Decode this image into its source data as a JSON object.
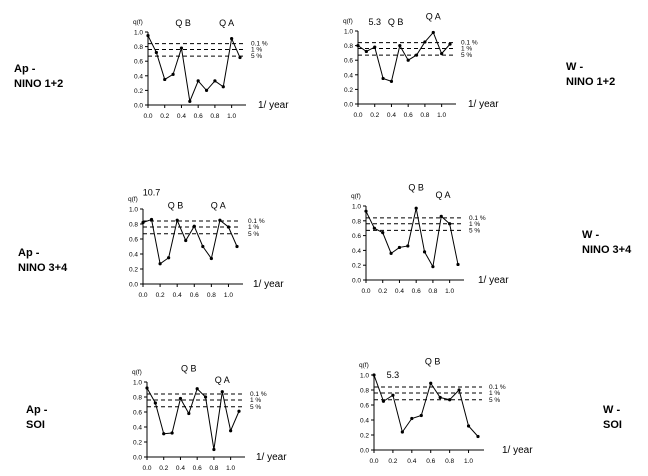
{
  "side_labels": [
    {
      "line1": "Ap -",
      "line2": "NINO 1+2"
    },
    {
      "line1": "W -",
      "line2": "NINO 1+2"
    },
    {
      "line1": "Ap -",
      "line2": "NINO 3+4"
    },
    {
      "line1": "W -",
      "line2": "NINO 3+4"
    },
    {
      "line1": "Ap -",
      "line2": "SOI"
    },
    {
      "line1": "W -",
      "line2": "SOI"
    }
  ],
  "chart_data": [
    {
      "type": "line",
      "ylabel": "q(f)",
      "xlabel": "1/ year",
      "x_ticks": [
        "0.0",
        "0.2",
        "0.4",
        "0.6",
        "0.8",
        "1.0"
      ],
      "y_ticks": [
        "0.0",
        "0.2",
        "0.4",
        "0.6",
        "0.8",
        "1.0"
      ],
      "xlim": [
        0,
        1.1
      ],
      "ylim": [
        0,
        1
      ],
      "significance_levels": [
        {
          "label": "0.1 %",
          "value": 0.84
        },
        {
          "label": "1 %",
          "value": 0.76
        },
        {
          "label": "5 %",
          "value": 0.67
        }
      ],
      "annotations": [
        {
          "text": "Q B",
          "x": 0.42,
          "y": 1.12
        },
        {
          "text": "Q A",
          "x": 0.94,
          "y": 1.12
        }
      ],
      "series": [
        {
          "x": [
            0.0,
            0.1,
            0.2,
            0.3,
            0.4,
            0.5,
            0.6,
            0.7,
            0.8,
            0.9,
            1.0,
            1.1
          ],
          "y": [
            0.95,
            0.72,
            0.35,
            0.42,
            0.78,
            0.05,
            0.33,
            0.2,
            0.33,
            0.25,
            0.91,
            0.65
          ]
        }
      ]
    },
    {
      "type": "line",
      "ylabel": "q(f)",
      "xlabel": "1/ year",
      "x_ticks": [
        "0.0",
        "0.2",
        "0.4",
        "0.6",
        "0.8",
        "1.0"
      ],
      "y_ticks": [
        "0.0",
        "0.2",
        "0.4",
        "0.6",
        "0.8",
        "1.0"
      ],
      "xlim": [
        0,
        1.1
      ],
      "ylim": [
        0,
        1
      ],
      "significance_levels": [
        {
          "label": "0.1 %",
          "value": 0.84
        },
        {
          "label": "1 %",
          "value": 0.76
        },
        {
          "label": "5 %",
          "value": 0.67
        }
      ],
      "annotations": [
        {
          "text": "5.3",
          "x": 0.2,
          "y": 1.12
        },
        {
          "text": "Q B",
          "x": 0.45,
          "y": 1.12
        },
        {
          "text": "Q A",
          "x": 0.9,
          "y": 1.2
        }
      ],
      "series": [
        {
          "x": [
            0.0,
            0.1,
            0.2,
            0.3,
            0.4,
            0.5,
            0.6,
            0.7,
            0.8,
            0.9,
            1.0,
            1.1
          ],
          "y": [
            0.8,
            0.72,
            0.78,
            0.35,
            0.31,
            0.8,
            0.6,
            0.67,
            0.85,
            0.98,
            0.69,
            0.82
          ]
        }
      ]
    },
    {
      "type": "line",
      "ylabel": "q(f)",
      "xlabel": "1/ year",
      "x_ticks": [
        "0.0",
        "0.2",
        "0.4",
        "0.6",
        "0.8",
        "1.0"
      ],
      "y_ticks": [
        "0.0",
        "0.2",
        "0.4",
        "0.6",
        "0.8",
        "1.0"
      ],
      "xlim": [
        0,
        1.1
      ],
      "ylim": [
        0,
        1
      ],
      "significance_levels": [
        {
          "label": "0.1 %",
          "value": 0.84
        },
        {
          "label": "1 %",
          "value": 0.76
        },
        {
          "label": "5 %",
          "value": 0.67
        }
      ],
      "annotations": [
        {
          "text": "10.7",
          "x": 0.1,
          "y": 1.22
        },
        {
          "text": "Q B",
          "x": 0.38,
          "y": 1.05
        },
        {
          "text": "Q A",
          "x": 0.88,
          "y": 1.05
        }
      ],
      "series": [
        {
          "x": [
            0.0,
            0.1,
            0.2,
            0.3,
            0.4,
            0.5,
            0.6,
            0.7,
            0.8,
            0.9,
            1.0,
            1.1
          ],
          "y": [
            0.82,
            0.86,
            0.27,
            0.35,
            0.85,
            0.58,
            0.77,
            0.5,
            0.34,
            0.85,
            0.76,
            0.5
          ]
        }
      ]
    },
    {
      "type": "line",
      "ylabel": "q(f)",
      "xlabel": "1/ year",
      "x_ticks": [
        "0.0",
        "0.2",
        "0.4",
        "0.6",
        "0.8",
        "1.0"
      ],
      "y_ticks": [
        "0.0",
        "0.2",
        "0.4",
        "0.6",
        "0.8",
        "1.0"
      ],
      "xlim": [
        0,
        1.1
      ],
      "ylim": [
        0,
        1
      ],
      "significance_levels": [
        {
          "label": "0.1 %",
          "value": 0.84
        },
        {
          "label": "1 %",
          "value": 0.76
        },
        {
          "label": "5 %",
          "value": 0.67
        }
      ],
      "annotations": [
        {
          "text": "Q B",
          "x": 0.6,
          "y": 1.25
        },
        {
          "text": "Q A",
          "x": 0.92,
          "y": 1.15
        }
      ],
      "series": [
        {
          "x": [
            0.0,
            0.1,
            0.2,
            0.3,
            0.4,
            0.5,
            0.6,
            0.7,
            0.8,
            0.9,
            1.0,
            1.1
          ],
          "y": [
            0.93,
            0.7,
            0.64,
            0.36,
            0.44,
            0.46,
            0.97,
            0.38,
            0.18,
            0.86,
            0.76,
            0.21
          ]
        }
      ]
    },
    {
      "type": "line",
      "ylabel": "q(f)",
      "xlabel": "1/ year",
      "x_ticks": [
        "0.0",
        "0.2",
        "0.4",
        "0.6",
        "0.8",
        "1.0"
      ],
      "y_ticks": [
        "0.0",
        "0.2",
        "0.4",
        "0.6",
        "0.8",
        "1.0"
      ],
      "xlim": [
        0,
        1.1
      ],
      "ylim": [
        0,
        1
      ],
      "significance_levels": [
        {
          "label": "0.1 %",
          "value": 0.84
        },
        {
          "label": "1 %",
          "value": 0.76
        },
        {
          "label": "5 %",
          "value": 0.67
        }
      ],
      "annotations": [
        {
          "text": "Q B",
          "x": 0.5,
          "y": 1.18
        },
        {
          "text": "Q A",
          "x": 0.9,
          "y": 1.03
        }
      ],
      "series": [
        {
          "x": [
            0.0,
            0.1,
            0.2,
            0.3,
            0.4,
            0.5,
            0.6,
            0.7,
            0.8,
            0.9,
            1.0,
            1.1
          ],
          "y": [
            0.92,
            0.72,
            0.31,
            0.32,
            0.78,
            0.58,
            0.91,
            0.8,
            0.1,
            0.87,
            0.35,
            0.61
          ]
        }
      ]
    },
    {
      "type": "line",
      "ylabel": "q(f)",
      "xlabel": "1/ year",
      "x_ticks": [
        "0.0",
        "0.2",
        "0.4",
        "0.6",
        "0.8",
        "1.0"
      ],
      "y_ticks": [
        "0.0",
        "0.2",
        "0.4",
        "0.6",
        "0.8",
        "1.0"
      ],
      "xlim": [
        0,
        1.1
      ],
      "ylim": [
        0,
        1
      ],
      "significance_levels": [
        {
          "label": "0.1 %",
          "value": 0.84
        },
        {
          "label": "1 %",
          "value": 0.76
        },
        {
          "label": "5 %",
          "value": 0.67
        }
      ],
      "annotations": [
        {
          "text": "5.3",
          "x": 0.2,
          "y": 1.0
        },
        {
          "text": "Q B",
          "x": 0.62,
          "y": 1.18
        }
      ],
      "series": [
        {
          "x": [
            0.0,
            0.1,
            0.2,
            0.3,
            0.4,
            0.5,
            0.6,
            0.7,
            0.8,
            0.9,
            1.0,
            1.1
          ],
          "y": [
            1.0,
            0.65,
            0.73,
            0.24,
            0.42,
            0.46,
            0.89,
            0.7,
            0.67,
            0.8,
            0.32,
            0.18
          ]
        }
      ]
    }
  ]
}
